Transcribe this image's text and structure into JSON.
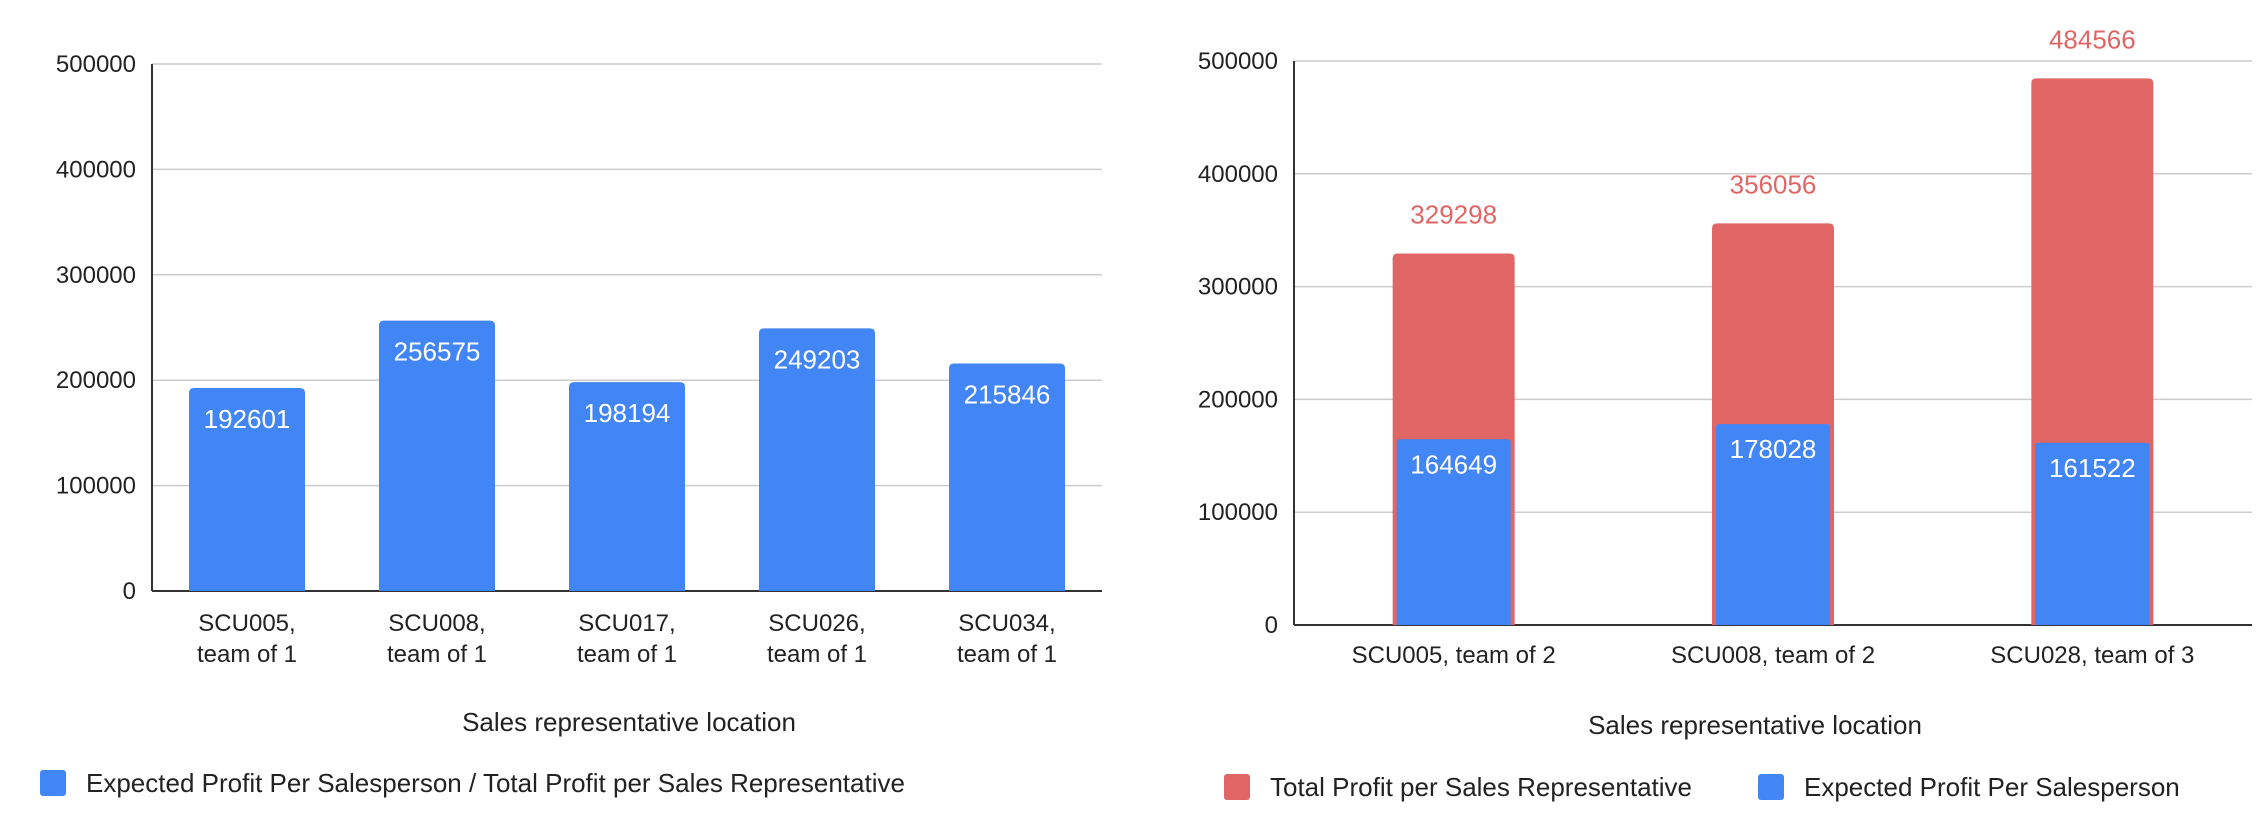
{
  "chart_data": [
    {
      "type": "bar",
      "categories": [
        [
          "SCU005,",
          "team of 1"
        ],
        [
          "SCU008,",
          "team of 1"
        ],
        [
          "SCU017,",
          "team of 1"
        ],
        [
          "SCU026,",
          "team of 1"
        ],
        [
          "SCU034,",
          "team of 1"
        ]
      ],
      "series": [
        {
          "name": "Expected Profit Per Salesperson / Total Profit per Sales Representative",
          "values": [
            192601,
            256575,
            198194,
            249203,
            215846
          ],
          "color": "#4285f4"
        }
      ],
      "data_labels": [
        "192601",
        "256575",
        "198194",
        "249203",
        "215846"
      ],
      "xlabel": "Sales representative location",
      "ylabel": "",
      "ylim": [
        0,
        500000
      ],
      "yticks": [
        0,
        100000,
        200000,
        300000,
        400000,
        500000
      ],
      "ytick_labels": [
        "0",
        "100000",
        "200000",
        "300000",
        "400000",
        "500000"
      ],
      "grid": true,
      "legend_position": "bottom-left"
    },
    {
      "type": "bar",
      "stacked_overlay": true,
      "categories": [
        [
          "SCU005, team of 2"
        ],
        [
          "SCU008, team of 2"
        ],
        [
          "SCU028, team of 3"
        ]
      ],
      "series": [
        {
          "name": "Total Profit per Sales Representative",
          "values": [
            329298,
            356056,
            484566
          ],
          "color": "#e06666",
          "data_labels": [
            "329298",
            "356056",
            "484566"
          ]
        },
        {
          "name": "Expected Profit Per Salesperson",
          "values": [
            164649,
            178028,
            161522
          ],
          "color": "#4285f4",
          "data_labels": [
            "164649",
            "178028",
            "161522"
          ]
        }
      ],
      "xlabel": "Sales representative location",
      "ylabel": "",
      "ylim": [
        0,
        500000
      ],
      "yticks": [
        0,
        100000,
        200000,
        300000,
        400000,
        500000
      ],
      "ytick_labels": [
        "0",
        "100000",
        "200000",
        "300000",
        "400000",
        "500000"
      ],
      "grid": true,
      "legend_position": "bottom-center"
    }
  ]
}
